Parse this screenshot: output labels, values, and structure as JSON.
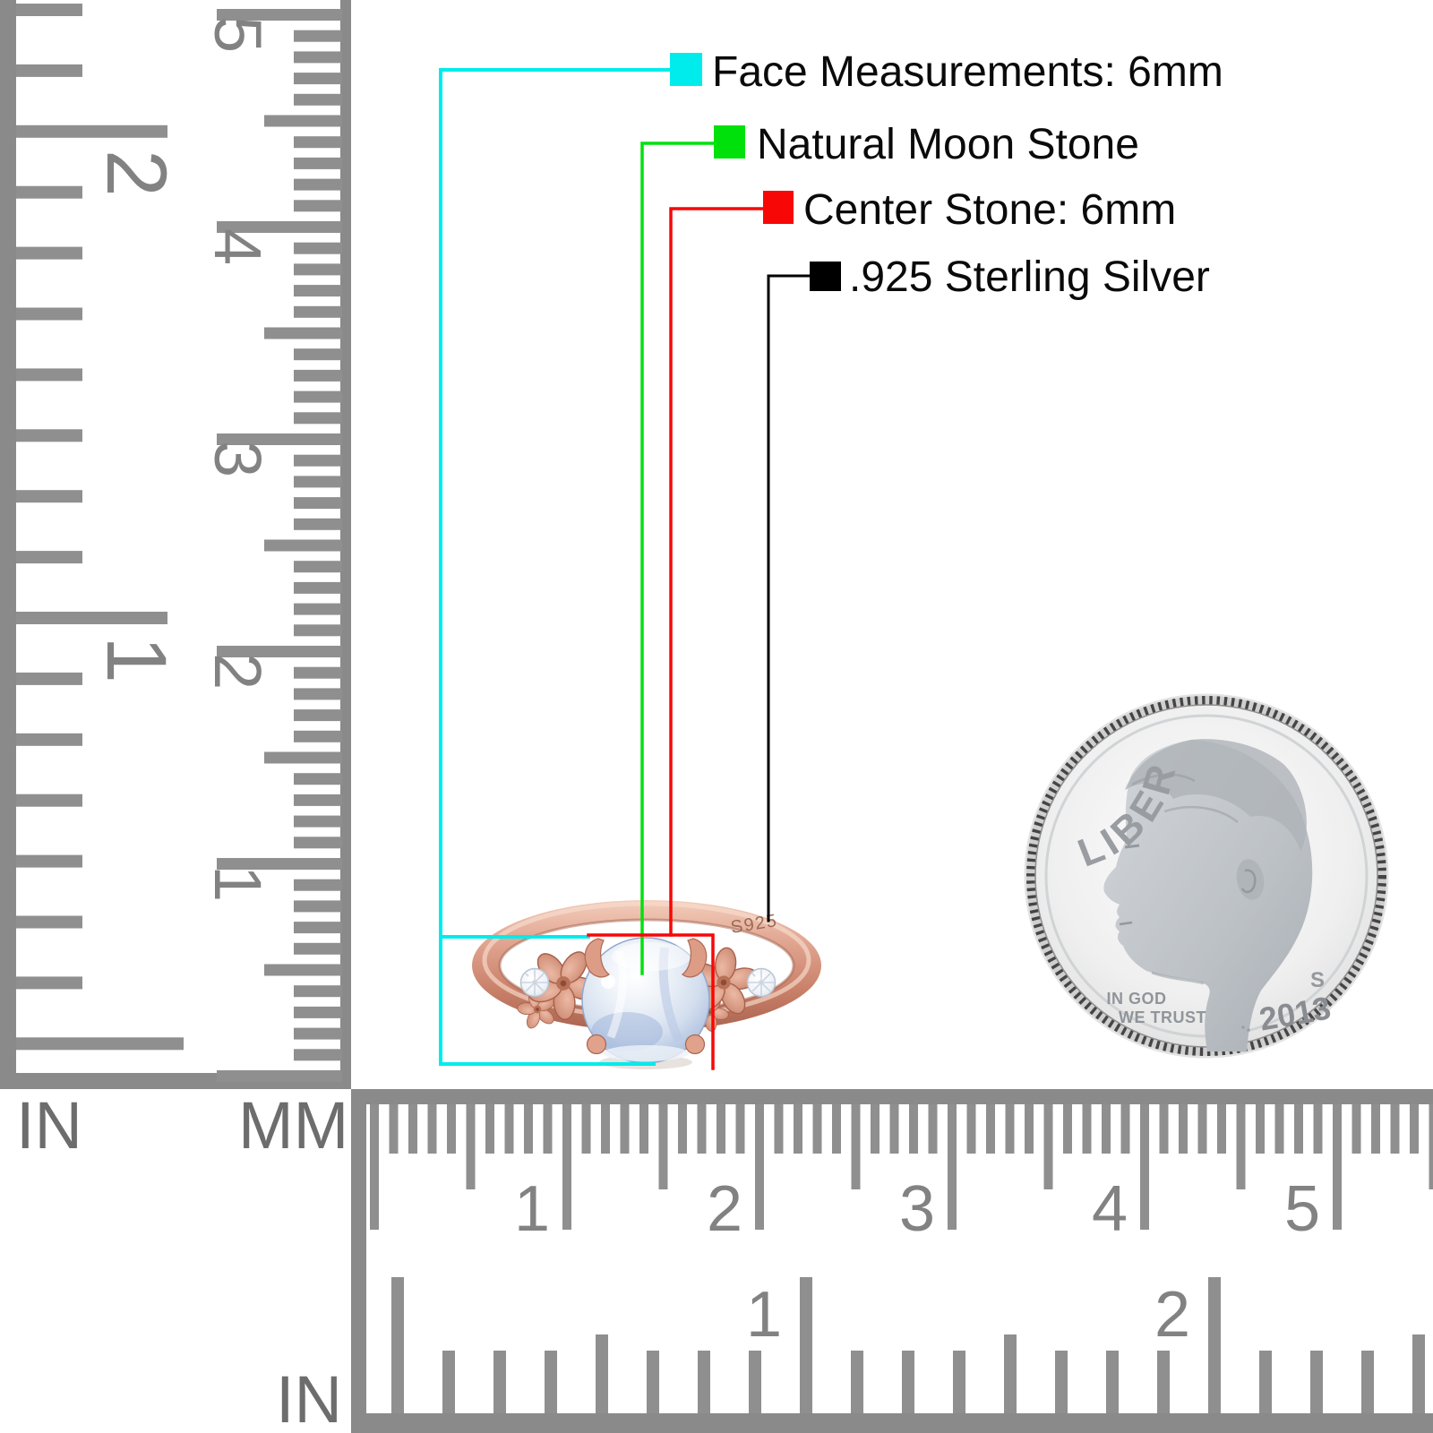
{
  "callouts": [
    {
      "label": "Face Measurements: 6mm",
      "color": "#00ecec"
    },
    {
      "label": "Natural Moon Stone",
      "color": "#00e10c"
    },
    {
      "label": "Center Stone: 6mm",
      "color": "#f80707"
    },
    {
      "label": ".925 Sterling Silver",
      "color": "#000000"
    }
  ],
  "left_ruler": {
    "unit_inch": "IN",
    "unit_mm": "MM",
    "inch_labels": [
      "2",
      "1"
    ],
    "cm_labels": [
      "5",
      "4",
      "3",
      "2",
      "1"
    ]
  },
  "bottom_ruler": {
    "unit_inch": "IN",
    "cm_labels": [
      "1",
      "2",
      "3",
      "4",
      "5"
    ],
    "inch_labels": [
      "1",
      "2"
    ]
  },
  "ring": {
    "engraving": "S925"
  },
  "coin": {
    "legend": "LIBERTY",
    "motto_line1": "IN GOD",
    "motto_line2": "WE TRUST",
    "mint_mark": "S",
    "year": "2013"
  }
}
